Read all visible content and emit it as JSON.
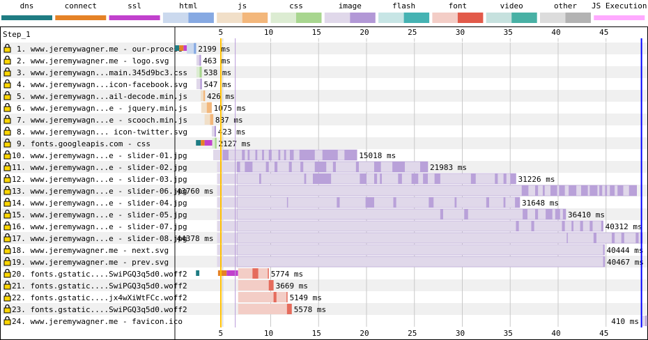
{
  "legend": [
    {
      "label": "dns",
      "light": "#1f7c83",
      "dark": "#1f7c83",
      "solid": true
    },
    {
      "label": "connect",
      "light": "#e58226",
      "dark": "#e58226",
      "solid": true
    },
    {
      "label": "ssl",
      "light": "#c141cd",
      "dark": "#c141cd",
      "solid": true
    },
    {
      "label": "html",
      "light": "#cbd9ee",
      "dark": "#86a9e2",
      "solid": false
    },
    {
      "label": "js",
      "light": "#f1dfc8",
      "dark": "#f3b77b",
      "solid": false
    },
    {
      "label": "css",
      "light": "#dcecd2",
      "dark": "#a8d68f",
      "solid": false
    },
    {
      "label": "image",
      "light": "#e0d8ea",
      "dark": "#b298d6",
      "solid": false
    },
    {
      "label": "flash",
      "light": "#c7e5e5",
      "dark": "#45b3b3",
      "solid": false
    },
    {
      "label": "font",
      "light": "#f3cdc6",
      "dark": "#e25a4a",
      "solid": false
    },
    {
      "label": "video",
      "light": "#c6e1de",
      "dark": "#48b1a5",
      "solid": false
    },
    {
      "label": "other",
      "light": "#dcdcdc",
      "dark": "#b3b3b3",
      "solid": false
    },
    {
      "label": "JS Execution",
      "light": "#ffaaff",
      "dark": "#ffaaff",
      "solid": true
    }
  ],
  "chart_data": {
    "type": "waterfall",
    "step_label": "Step_1",
    "x_unit": "seconds",
    "xlim": [
      0,
      49.5
    ],
    "x_ticks": [
      5,
      10,
      15,
      20,
      25,
      30,
      35,
      40,
      45
    ],
    "markers": [
      {
        "name": "start-render",
        "time": 4.8,
        "color": "#ffc000"
      },
      {
        "name": "dom-content",
        "time": 6.3,
        "color": "#b89ad8"
      },
      {
        "name": "onload",
        "time": 48.7,
        "color": "#0000ff"
      }
    ],
    "requests": [
      {
        "label": "1. www.jeremywagner.me - our-process",
        "type": "html",
        "phases": {
          "dns": [
            0,
            0.45
          ],
          "connect": [
            0.45,
            0.9
          ],
          "ssl": [
            0.9,
            1.25
          ]
        },
        "ttfb": [
          1.25,
          2.0
        ],
        "download": [
          2.0,
          2.2
        ],
        "duration": "2199 ms"
      },
      {
        "label": "2. www.jeremywagner.me - logo.svg",
        "type": "image",
        "ttfb": [
          2.25,
          2.55
        ],
        "download": [
          2.55,
          2.71
        ],
        "duration": "463 ms"
      },
      {
        "label": "3. www.jeremywagn...main.345d9bc3.css",
        "type": "css",
        "ttfb": [
          2.25,
          2.6
        ],
        "download": [
          2.6,
          2.79
        ],
        "duration": "538 ms"
      },
      {
        "label": "4. www.jeremywagn...icon-facebook.svg",
        "type": "image",
        "ttfb": [
          2.25,
          2.65
        ],
        "download": [
          2.65,
          2.8
        ],
        "duration": "547 ms"
      },
      {
        "label": "5. www.jeremywagn...ail-decode.min.js",
        "type": "js",
        "ttfb": [
          2.7,
          3.0
        ],
        "download": [
          3.0,
          3.13
        ],
        "duration": "426 ms"
      },
      {
        "label": "6. www.jeremywagn...e - jquery.min.js",
        "type": "js",
        "ttfb": [
          2.75,
          3.35
        ],
        "download": [
          3.35,
          3.83
        ],
        "duration": "1075 ms"
      },
      {
        "label": "7. www.jeremywagn...e - scooch.min.js",
        "type": "js",
        "ttfb": [
          3.1,
          3.7
        ],
        "download": [
          3.7,
          3.99
        ],
        "duration": "887 ms"
      },
      {
        "label": "8. www.jeremywagn... icon-twitter.svg",
        "type": "image",
        "ttfb": [
          3.85,
          4.15
        ],
        "download": [
          4.15,
          4.27
        ],
        "duration": "423 ms"
      },
      {
        "label": "9. fonts.googleapis.com - css",
        "type": "css",
        "phases": {
          "dns": [
            2.2,
            2.7
          ],
          "connect": [
            2.7,
            3.1
          ],
          "ssl": [
            3.1,
            3.9
          ]
        },
        "ttfb": [
          3.9,
          4.2
        ],
        "download": [
          4.2,
          4.33
        ],
        "duration": "2127 ms"
      },
      {
        "label": "10. www.jeremywagn...e - slider-01.jpg",
        "type": "image",
        "ttfb": [
          4.0,
          5.0
        ],
        "download": [
          5.0,
          19.0
        ],
        "chunks": [
          [
            5.0,
            5.6
          ],
          [
            7.0,
            7.3
          ],
          [
            7.6,
            7.8
          ],
          [
            8.4,
            8.6
          ],
          [
            9.1,
            9.3
          ],
          [
            9.8,
            10.1
          ],
          [
            10.8,
            11.0
          ],
          [
            11.4,
            11.6
          ],
          [
            12.0,
            12.4
          ],
          [
            13.0,
            14.6
          ],
          [
            15.4,
            17.0
          ],
          [
            17.7,
            19.0
          ]
        ],
        "duration": "15018 ms"
      },
      {
        "label": "11. www.jeremywagn...e - slider-02.jpg",
        "type": "image",
        "ttfb": [
          4.4,
          6.5
        ],
        "download": [
          6.5,
          26.4
        ],
        "chunks": [
          [
            6.5,
            6.8
          ],
          [
            7.3,
            8.1
          ],
          [
            9.5,
            9.8
          ],
          [
            10.4,
            10.7
          ],
          [
            11.9,
            12.2
          ],
          [
            13.1,
            13.4
          ],
          [
            14.6,
            15.8
          ],
          [
            16.5,
            16.8
          ],
          [
            18.9,
            19.2
          ],
          [
            20.8,
            21.5
          ],
          [
            22.7,
            24.0
          ],
          [
            25.6,
            26.4
          ]
        ],
        "duration": "21983 ms"
      },
      {
        "label": "12. www.jeremywagn...e - slider-03.jpg",
        "type": "image",
        "ttfb": [
          4.4,
          6.5
        ],
        "download": [
          6.5,
          35.6
        ],
        "chunks": [
          [
            8.8,
            9.0
          ],
          [
            13.5,
            13.7
          ],
          [
            14.4,
            16.3
          ],
          [
            19.3,
            20.0
          ],
          [
            20.8,
            21.1
          ],
          [
            21.4,
            21.6
          ],
          [
            23.3,
            23.7
          ],
          [
            24.7,
            25.4
          ],
          [
            25.9,
            26.4
          ],
          [
            27.1,
            27.7
          ],
          [
            30.9,
            31.4
          ],
          [
            33.4,
            33.7
          ],
          [
            34.3,
            34.6
          ],
          [
            35.0,
            35.6
          ]
        ],
        "duration": "31226 ms"
      },
      {
        "label": "13. www.jeremywagn...e - slider-06.jpg",
        "type": "image",
        "ttfb": [
          4.4,
          6.5
        ],
        "download": [
          6.5,
          48.2
        ],
        "chunks": [
          [
            36.2,
            36.9
          ],
          [
            37.6,
            37.9
          ],
          [
            38.4,
            38.6
          ],
          [
            39.2,
            39.9
          ],
          [
            40.1,
            40.7
          ],
          [
            41.1,
            41.9
          ],
          [
            42.4,
            43.1
          ],
          [
            43.3,
            44.1
          ],
          [
            44.3,
            44.6
          ],
          [
            44.9,
            45.1
          ],
          [
            45.4,
            45.9
          ],
          [
            46.2,
            46.8
          ],
          [
            47.4,
            48.2
          ]
        ],
        "label_left": true,
        "duration": "43760 ms"
      },
      {
        "label": "14. www.jeremywagn...e - slider-04.jpg",
        "type": "image",
        "ttfb": [
          4.4,
          6.5
        ],
        "download": [
          6.5,
          36.0
        ],
        "chunks": [
          [
            11.7,
            11.8
          ],
          [
            16.9,
            17.2
          ],
          [
            19.9,
            20.8
          ],
          [
            22.8,
            23.1
          ],
          [
            26.5,
            27.0
          ],
          [
            29.2,
            29.4
          ],
          [
            32.5,
            32.8
          ],
          [
            34.3,
            34.5
          ],
          [
            35.5,
            36.0
          ]
        ],
        "duration": "31648 ms"
      },
      {
        "label": "15. www.jeremywagn...e - slider-05.jpg",
        "type": "image",
        "ttfb": [
          4.4,
          6.5
        ],
        "download": [
          6.5,
          40.8
        ],
        "chunks": [
          [
            27.7,
            28.0
          ],
          [
            30.2,
            30.6
          ],
          [
            36.3,
            36.8
          ],
          [
            37.6,
            37.9
          ],
          [
            38.7,
            39.4
          ],
          [
            39.7,
            40.2
          ],
          [
            40.5,
            40.8
          ]
        ],
        "duration": "36410 ms"
      },
      {
        "label": "16. www.jeremywagn...e - slider-07.jpg",
        "type": "image",
        "ttfb": [
          4.4,
          6.5
        ],
        "download": [
          6.5,
          44.7
        ],
        "chunks": [
          [
            35.6,
            35.9
          ],
          [
            37.2,
            37.5
          ],
          [
            40.4,
            40.7
          ],
          [
            41.4,
            41.6
          ],
          [
            42.3,
            42.6
          ],
          [
            43.3,
            43.6
          ],
          [
            44.5,
            44.7
          ]
        ],
        "duration": "40312 ms"
      },
      {
        "label": "17. www.jeremywagn...e - slider-08.jpg",
        "type": "image",
        "ttfb": [
          4.4,
          6.5
        ],
        "download": [
          6.5,
          48.8
        ],
        "chunks": [
          [
            40.9,
            41.0
          ],
          [
            43.7,
            44.0
          ],
          [
            45.6,
            45.9
          ],
          [
            46.6,
            46.9
          ],
          [
            48.1,
            48.4
          ],
          [
            48.6,
            48.8
          ]
        ],
        "label_left": true,
        "duration": "44378 ms"
      },
      {
        "label": "18. www.jeremywagner.me - next.svg",
        "type": "image",
        "ttfb": [
          4.4,
          6.5
        ],
        "download": [
          6.5,
          44.84
        ],
        "chunks": [
          [
            44.7,
            44.84
          ]
        ],
        "duration": "40444 ms"
      },
      {
        "label": "19. www.jeremywagner.me - prev.svg",
        "type": "image",
        "ttfb": [
          4.4,
          6.5
        ],
        "download": [
          6.5,
          44.87
        ],
        "chunks": [
          [
            44.7,
            44.87
          ]
        ],
        "duration": "40467 ms"
      },
      {
        "label": "20. fonts.gstatic....SwiPGQ3q5d0.woff2",
        "type": "font",
        "phases": {
          "dns": [
            2.2,
            2.55
          ],
          "connect": [
            4.5,
            5.4
          ],
          "ssl": [
            5.4,
            6.6
          ]
        },
        "ttfb": [
          6.6,
          9.8
        ],
        "download": [
          6.6,
          9.8
        ],
        "chunks": [
          [
            8.1,
            8.7
          ],
          [
            9.7,
            9.8
          ]
        ],
        "duration": "5774 ms"
      },
      {
        "label": "21. fonts.gstatic....SwiPGQ3q5d0.woff2",
        "type": "font",
        "ttfb": [
          6.6,
          10.3
        ],
        "download": [
          6.6,
          10.3
        ],
        "chunks": [
          [
            9.8,
            10.3
          ]
        ],
        "duration": "3669 ms"
      },
      {
        "label": "22. fonts.gstatic....jx4wXiWtFCc.woff2",
        "type": "font",
        "ttfb": [
          6.6,
          11.75
        ],
        "download": [
          6.6,
          11.75
        ],
        "chunks": [
          [
            10.3,
            10.6
          ],
          [
            11.65,
            11.75
          ]
        ],
        "duration": "5149 ms"
      },
      {
        "label": "23. fonts.gstatic....SwiPGQ3q5d0.woff2",
        "type": "font",
        "ttfb": [
          6.6,
          12.2
        ],
        "download": [
          6.6,
          12.2
        ],
        "chunks": [
          [
            11.7,
            12.2
          ]
        ],
        "duration": "5578 ms"
      },
      {
        "label": "24. www.jeremywagner.me - favicon.ico",
        "type": "image",
        "ttfb": [
          48.8,
          49.2
        ],
        "download": [
          49.2,
          49.21
        ],
        "label_left": true,
        "duration": "410 ms"
      }
    ]
  }
}
